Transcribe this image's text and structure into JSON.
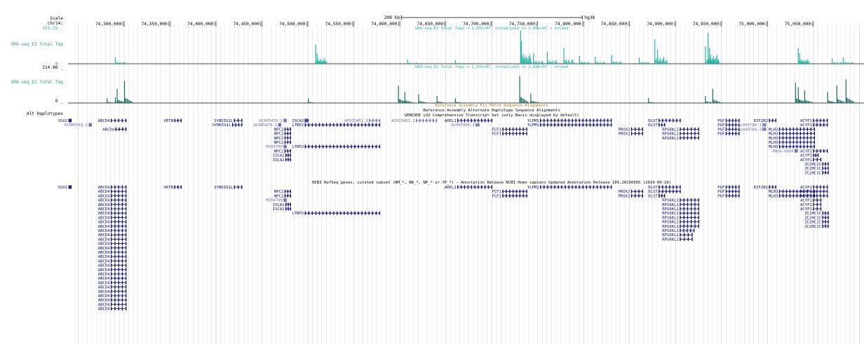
{
  "ruler": {
    "scale_label": "Scale",
    "chrom_label": "chr14:",
    "scale_bar_text": "200 kb",
    "assembly": "hg38",
    "positions": [
      {
        "pos": 74300000,
        "label": "74,300,000|"
      },
      {
        "pos": 74350000,
        "label": "74,350,000|"
      },
      {
        "pos": 74400000,
        "label": "74,400,000|"
      },
      {
        "pos": 74450000,
        "label": "74,450,000|"
      },
      {
        "pos": 74500000,
        "label": "74,500,000|"
      },
      {
        "pos": 74550000,
        "label": "74,550,000|"
      },
      {
        "pos": 74600000,
        "label": "74,600,000|"
      },
      {
        "pos": 74650000,
        "label": "74,650,000|"
      },
      {
        "pos": 74700000,
        "label": "74,700,000|"
      },
      {
        "pos": 74750000,
        "label": "74,750,000|"
      },
      {
        "pos": 74800000,
        "label": "74,800,000|"
      },
      {
        "pos": 74850000,
        "label": "74,850,000|"
      },
      {
        "pos": 74900000,
        "label": "74,900,000|"
      },
      {
        "pos": 74950000,
        "label": "74,950,000|"
      },
      {
        "pos": 75000000,
        "label": "75,000,000|"
      },
      {
        "pos": 75050000,
        "label": "75,050,000|"
      }
    ]
  },
  "tracks": {
    "plus_max": "155.25 _",
    "plus_title": "GRO-seq_E2 Total Tags = 1.67e+07, normalized to 1.00e+07 + strand",
    "plus_label": "GRO-seq_E2 Total Tag",
    "plus_min": "0 _",
    "minus_max": "214.86 _",
    "minus_title": "GRO-seq_E2 Total Tags = 1.67e+07, normalized to 1.00e+07 - strand",
    "minus_label": "GRO-seq_E2 Total Tag",
    "minus_min": "0 _",
    "fix_patch_title": "Reference Assembly Fix Patch Sequence Alignments",
    "alt_hap_title": "Reference Assembly Alternate Haplotype Sequence Alignments",
    "alt_hap_label": "Alt Haplotypes",
    "gencode_title": "GENCODE v32 Comprehensive Transcript Set (only Basic displayed by default)",
    "refseq_title": "NCBI RefSeq genes, curated subset (NM_*, NR_*, NP_* or YP_*) - Annotation Release NCBI Homo sapiens Updated Annotation Release 109.20190905 (2019-09-10)"
  },
  "colors": {
    "teal": "#22b3a5",
    "dark_teal": "#1a6e62",
    "gene_blue": "#0c0c78",
    "gene_light": "#6b6bb0",
    "grid": "#d9d9d9",
    "fix_orange": "#b07a10"
  },
  "genes_gencode": [
    {
      "name": "VSX2",
      "s": 74240000,
      "e": 74241500,
      "row": 0,
      "labelLeft": true
    },
    {
      "name": "ABCD4",
      "s": 74286000,
      "e": 74302000,
      "row": 0
    },
    {
      "name": "AC005519.1",
      "s": 74262000,
      "e": 74263000,
      "row": 1,
      "light": true
    },
    {
      "name": "ABCD4",
      "s": 74291000,
      "e": 74302000,
      "row": 2
    },
    {
      "name": "VRTN",
      "s": 74355000,
      "e": 74362000,
      "row": 0
    },
    {
      "name": "SYNDIG1L",
      "s": 74420000,
      "e": 74428000,
      "row": 0
    },
    {
      "name": "SYNDIG1L",
      "s": 74418000,
      "e": 74428000,
      "row": 1
    },
    {
      "name": "AC005479.2",
      "s": 74474000,
      "e": 74476000,
      "row": 0,
      "light": true
    },
    {
      "name": "AC005479.1",
      "s": 74468000,
      "e": 74470000,
      "row": 1,
      "light": true
    },
    {
      "name": "ISCA2",
      "s": 74497000,
      "e": 74500000,
      "row": 0
    },
    {
      "name": "LTBP2",
      "s": 74497000,
      "e": 74578000,
      "row": 1
    },
    {
      "name": "AC013451.1",
      "s": 74567000,
      "e": 74578000,
      "row": 0,
      "light": true
    },
    {
      "name": "AC013451.2",
      "s": 74618000,
      "e": 74640000,
      "row": 0,
      "light": true
    },
    {
      "name": "NPC2",
      "s": 74475000,
      "e": 74481000,
      "row": 2
    },
    {
      "name": "NPC2",
      "s": 74475000,
      "e": 74481000,
      "row": 3
    },
    {
      "name": "NPC2",
      "s": 74475000,
      "e": 74481000,
      "row": 4
    },
    {
      "name": "NPC2",
      "s": 74475000,
      "e": 74481000,
      "row": 5
    },
    {
      "name": "MIR4709",
      "s": 74474000,
      "e": 74475000,
      "row": 6,
      "light": true
    },
    {
      "name": "LTBP2",
      "s": 74497000,
      "e": 74578000,
      "row": 6
    },
    {
      "name": "NPC2",
      "s": 74475000,
      "e": 74481000,
      "row": 7
    },
    {
      "name": "ISCA2",
      "s": 74476000,
      "e": 74481000,
      "row": 8
    },
    {
      "name": "ISCA2",
      "s": 74476000,
      "e": 74481000,
      "row": 9
    },
    {
      "name": "AREL1",
      "s": 74663000,
      "e": 74700000,
      "row": 0
    },
    {
      "name": "AC007956.1",
      "s": 74683000,
      "e": 74686000,
      "row": 1,
      "light": true
    },
    {
      "name": "FCF1",
      "s": 74712000,
      "e": 74738000,
      "row": 2
    },
    {
      "name": "FCF1",
      "s": 74712000,
      "e": 74738000,
      "row": 3
    },
    {
      "name": "YLPM1",
      "s": 74753000,
      "e": 74830000,
      "row": 0
    },
    {
      "name": "YLPM1",
      "s": 74753000,
      "e": 74830000,
      "row": 1
    },
    {
      "name": "PROX2",
      "s": 74852000,
      "e": 74864000,
      "row": 2
    },
    {
      "name": "PROX2",
      "s": 74852000,
      "e": 74864000,
      "row": 3
    },
    {
      "name": "DLST",
      "s": 74882000,
      "e": 74905000,
      "row": 0
    },
    {
      "name": "DLST",
      "s": 74882000,
      "e": 74888000,
      "row": 1
    },
    {
      "name": "RPS6KL1",
      "s": 74905000,
      "e": 74925000,
      "row": 2
    },
    {
      "name": "RPS6KL1",
      "s": 74905000,
      "e": 74925000,
      "row": 3
    },
    {
      "name": "RPS6KL1",
      "s": 74905000,
      "e": 74925000,
      "row": 4
    },
    {
      "name": "PGF",
      "s": 74955000,
      "e": 74969000,
      "row": 0
    },
    {
      "name": "PGF",
      "s": 74955000,
      "e": 74969000,
      "row": 1
    },
    {
      "name": "PGF",
      "s": 74955000,
      "e": 74969000,
      "row": 2
    },
    {
      "name": "PGF",
      "s": 74955000,
      "e": 74969000,
      "row": 3
    },
    {
      "name": "EIF2B2",
      "s": 75002000,
      "e": 75009000,
      "row": 0
    },
    {
      "name": "AL049780.1",
      "s": 74995000,
      "e": 74998000,
      "row": 1,
      "light": true
    },
    {
      "name": "AL049780.3",
      "s": 74995000,
      "e": 74998000,
      "row": 2,
      "light": true
    },
    {
      "name": "MLH3",
      "s": 75013000,
      "e": 75051000,
      "row": 2
    },
    {
      "name": "MLH3",
      "s": 75013000,
      "e": 75051000,
      "row": 3
    },
    {
      "name": "MLH3",
      "s": 75013000,
      "e": 75051000,
      "row": 4
    },
    {
      "name": "MLH3",
      "s": 75013000,
      "e": 75051000,
      "row": 5
    },
    {
      "name": "MLH3",
      "s": 75013000,
      "e": 75051000,
      "row": 6
    },
    {
      "name": "RNU6-689P",
      "s": 75030000,
      "e": 75031000,
      "row": 7,
      "light": true
    },
    {
      "name": "ACYP1",
      "s": 75050000,
      "e": 75065000,
      "row": 0
    },
    {
      "name": "ACYP1",
      "s": 75050000,
      "e": 75065000,
      "row": 1
    },
    {
      "name": "ACYP1",
      "s": 75050000,
      "e": 75065000,
      "row": 7
    },
    {
      "name": "ACYP1",
      "s": 75050000,
      "e": 75055000,
      "row": 8
    },
    {
      "name": "ACYP1",
      "s": 75050000,
      "e": 75058000,
      "row": 9
    },
    {
      "name": "ZC2HC1C",
      "s": 75060000,
      "e": 75066000,
      "row": 10
    },
    {
      "name": "ZC2HC1C",
      "s": 75060000,
      "e": 75066000,
      "row": 11
    },
    {
      "name": "ZC2HC1C",
      "s": 75060000,
      "e": 75066000,
      "row": 12
    }
  ],
  "genes_refseq": [
    {
      "name": "VSX2",
      "s": 74240000,
      "e": 74241500,
      "row": 0,
      "labelLeft": true
    },
    {
      "name": "VRTN",
      "s": 74355000,
      "e": 74362000,
      "row": 0
    },
    {
      "name": "SYNDIG1L",
      "s": 74420000,
      "e": 74428000,
      "row": 0
    },
    {
      "name": "NPC2",
      "s": 74475000,
      "e": 74481000,
      "row": 1
    },
    {
      "name": "NPC2",
      "s": 74475000,
      "e": 74481000,
      "row": 2
    },
    {
      "name": "MIR4709",
      "s": 74474000,
      "e": 74475000,
      "row": 3,
      "light": true
    },
    {
      "name": "ISCA2",
      "s": 74476000,
      "e": 74481000,
      "row": 4
    },
    {
      "name": "ISCA2",
      "s": 74476000,
      "e": 74481000,
      "row": 5
    },
    {
      "name": "LTBP2",
      "s": 74497000,
      "e": 74578000,
      "row": 6
    },
    {
      "name": "AREL1",
      "s": 74663000,
      "e": 74700000,
      "row": 0
    },
    {
      "name": "FCF1",
      "s": 74712000,
      "e": 74738000,
      "row": 1
    },
    {
      "name": "FCF1",
      "s": 74712000,
      "e": 74738000,
      "row": 2
    },
    {
      "name": "YLPM1",
      "s": 74753000,
      "e": 74830000,
      "row": 0
    },
    {
      "name": "PROX2",
      "s": 74852000,
      "e": 74864000,
      "row": 1
    },
    {
      "name": "PROX2",
      "s": 74852000,
      "e": 74864000,
      "row": 2
    },
    {
      "name": "DLST",
      "s": 74882000,
      "e": 74905000,
      "row": 0
    },
    {
      "name": "DLST",
      "s": 74882000,
      "e": 74905000,
      "row": 1
    },
    {
      "name": "DLST",
      "s": 74882000,
      "e": 74888000,
      "row": 2
    },
    {
      "name": "RPS6KL1",
      "s": 74905000,
      "e": 74925000,
      "row": 3
    },
    {
      "name": "RPS6KL1",
      "s": 74905000,
      "e": 74925000,
      "row": 4
    },
    {
      "name": "RPS6KL1",
      "s": 74905000,
      "e": 74925000,
      "row": 5
    },
    {
      "name": "RPS6KL1",
      "s": 74905000,
      "e": 74925000,
      "row": 6
    },
    {
      "name": "RPS6KL1",
      "s": 74905000,
      "e": 74925000,
      "row": 7
    },
    {
      "name": "RPS6KL1",
      "s": 74905000,
      "e": 74925000,
      "row": 8
    },
    {
      "name": "RPS6KL1",
      "s": 74905000,
      "e": 74925000,
      "row": 9
    },
    {
      "name": "RPS6KL1",
      "s": 74905000,
      "e": 74920000,
      "row": 10
    },
    {
      "name": "RPS6KL1",
      "s": 74905000,
      "e": 74918000,
      "row": 11
    },
    {
      "name": "RPS6KL1",
      "s": 74905000,
      "e": 74918000,
      "row": 12
    },
    {
      "name": "PGF",
      "s": 74955000,
      "e": 74969000,
      "row": 0
    },
    {
      "name": "PGF",
      "s": 74955000,
      "e": 74969000,
      "row": 1
    },
    {
      "name": "PGF",
      "s": 74955000,
      "e": 74969000,
      "row": 2
    },
    {
      "name": "EIF2B2",
      "s": 75002000,
      "e": 75009000,
      "row": 0
    },
    {
      "name": "MLH3",
      "s": 75013000,
      "e": 75051000,
      "row": 1
    },
    {
      "name": "MLH3",
      "s": 75013000,
      "e": 75051000,
      "row": 2
    },
    {
      "name": "ACYP1",
      "s": 75050000,
      "e": 75065000,
      "row": 0
    },
    {
      "name": "ACYP1",
      "s": 75050000,
      "e": 75065000,
      "row": 1
    },
    {
      "name": "ACYP1",
      "s": 75050000,
      "e": 75065000,
      "row": 2
    },
    {
      "name": "ACYP1",
      "s": 75050000,
      "e": 75058000,
      "row": 3
    },
    {
      "name": "ACYP1",
      "s": 75050000,
      "e": 75058000,
      "row": 4
    },
    {
      "name": "ACYP1",
      "s": 75050000,
      "e": 75058000,
      "row": 5
    },
    {
      "name": "ZC2HC1C",
      "s": 75060000,
      "e": 75066000,
      "row": 6
    },
    {
      "name": "ZC2HC1C",
      "s": 75060000,
      "e": 75066000,
      "row": 7
    },
    {
      "name": "ZC2HC1C",
      "s": 75060000,
      "e": 75066000,
      "row": 8
    },
    {
      "name": "ZC2HC1C",
      "s": 75060000,
      "e": 75066000,
      "row": 9
    }
  ],
  "abcd4_refseq": {
    "name": "ABCD4",
    "s": 74286000,
    "e": 74302000,
    "count": 29
  },
  "plus_peaks": [
    {
      "pos": 74290000,
      "h": 0.18
    },
    {
      "pos": 74508000,
      "h": 0.55
    },
    {
      "pos": 74509500,
      "h": 0.3
    },
    {
      "pos": 74608000,
      "h": 0.12
    },
    {
      "pos": 74660000,
      "h": 0.1
    },
    {
      "pos": 74731000,
      "h": 0.95
    },
    {
      "pos": 74731800,
      "h": 0.65
    },
    {
      "pos": 74745000,
      "h": 0.3
    },
    {
      "pos": 74760000,
      "h": 0.35
    },
    {
      "pos": 74778000,
      "h": 0.45
    },
    {
      "pos": 74795000,
      "h": 0.22
    },
    {
      "pos": 74812000,
      "h": 0.2
    },
    {
      "pos": 74830000,
      "h": 0.25
    },
    {
      "pos": 74860000,
      "h": 0.18
    },
    {
      "pos": 74877000,
      "h": 0.7
    },
    {
      "pos": 74880000,
      "h": 0.4
    },
    {
      "pos": 74932000,
      "h": 0.5
    },
    {
      "pos": 74935000,
      "h": 0.88
    },
    {
      "pos": 74936500,
      "h": 0.45
    },
    {
      "pos": 75033000,
      "h": 0.45
    },
    {
      "pos": 75034500,
      "h": 0.3
    },
    {
      "pos": 75070000,
      "h": 0.15
    },
    {
      "pos": 75082000,
      "h": 0.18
    }
  ],
  "minus_peaks": [
    {
      "pos": 74281000,
      "h": 0.15
    },
    {
      "pos": 74290000,
      "h": 0.18
    },
    {
      "pos": 74292000,
      "h": 0.45
    },
    {
      "pos": 74300000,
      "h": 0.7
    },
    {
      "pos": 74500000,
      "h": 0.15
    },
    {
      "pos": 74598000,
      "h": 0.55
    },
    {
      "pos": 74605000,
      "h": 0.35
    },
    {
      "pos": 74620000,
      "h": 0.28
    },
    {
      "pos": 74640000,
      "h": 0.22
    },
    {
      "pos": 74660000,
      "h": 0.15
    },
    {
      "pos": 74730000,
      "h": 0.85
    },
    {
      "pos": 74742000,
      "h": 0.3
    },
    {
      "pos": 74870000,
      "h": 0.15
    },
    {
      "pos": 74932000,
      "h": 0.22
    },
    {
      "pos": 74940000,
      "h": 0.45
    },
    {
      "pos": 75030000,
      "h": 0.65
    },
    {
      "pos": 75033000,
      "h": 0.5
    },
    {
      "pos": 75040000,
      "h": 0.4
    },
    {
      "pos": 75065000,
      "h": 0.35
    },
    {
      "pos": 75075000,
      "h": 0.55
    },
    {
      "pos": 75085000,
      "h": 0.75
    }
  ]
}
